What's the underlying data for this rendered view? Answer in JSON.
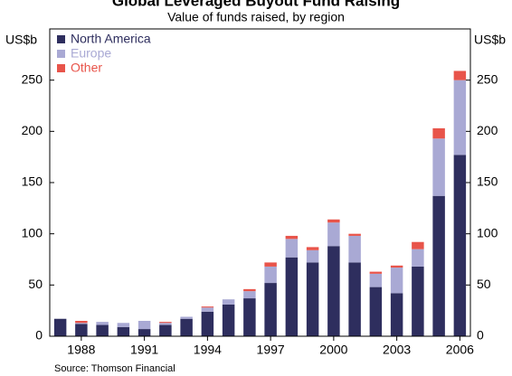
{
  "chart_data": {
    "type": "stacked_bar",
    "title": "Global Leveraged Buyout Fund Raising",
    "subtitle": "Value of funds raised, by region",
    "y_label": "US$b",
    "source": "Source: Thomson Financial",
    "categories": [
      null,
      "1988",
      null,
      null,
      "1991",
      null,
      null,
      "1994",
      null,
      null,
      "1997",
      null,
      null,
      "2000",
      null,
      null,
      "2003",
      null,
      null,
      "2006"
    ],
    "series": [
      {
        "name": "North America",
        "color": "#2e2e5e",
        "values": [
          17,
          12,
          11,
          9,
          7,
          11,
          17,
          24,
          31,
          37,
          52,
          77,
          72,
          88,
          72,
          48,
          42,
          68,
          137,
          177
        ]
      },
      {
        "name": "Europe",
        "color": "#a9a9d4",
        "values": [
          0,
          1,
          3,
          4,
          8,
          2,
          2,
          4,
          5,
          7,
          16,
          18,
          12,
          23,
          26,
          13,
          25,
          17,
          56,
          73
        ]
      },
      {
        "name": "Other",
        "color": "#e8544a",
        "values": [
          0,
          2,
          0,
          0,
          0,
          1,
          0,
          1,
          0,
          2,
          4,
          3,
          3,
          3,
          2,
          2,
          2,
          7,
          10,
          9
        ]
      }
    ],
    "ylim": [
      0,
      300
    ],
    "yticks": [
      0,
      50,
      100,
      150,
      200,
      250
    ],
    "legend": "top-left",
    "grid": false
  }
}
